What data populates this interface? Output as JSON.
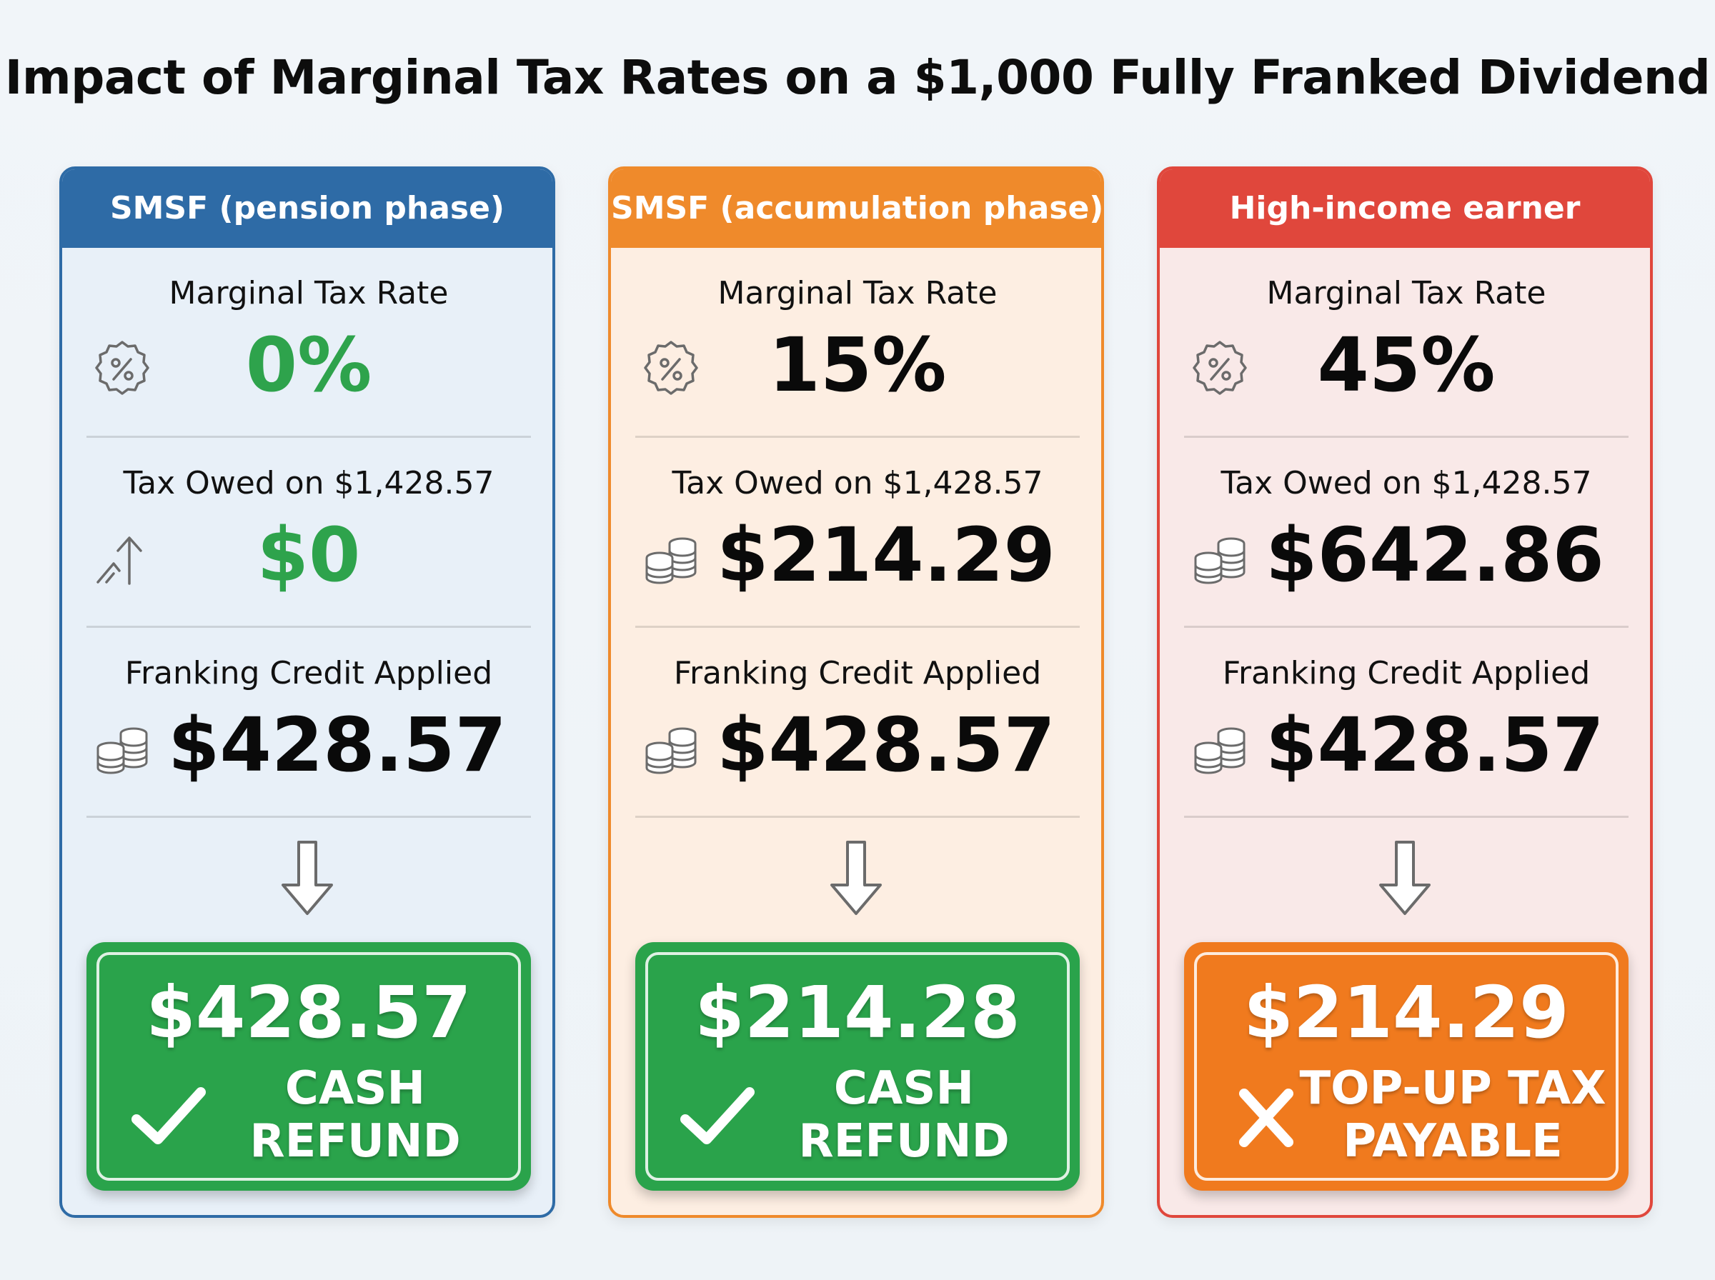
{
  "title": "Impact of Marginal Tax Rates on a $1,000 Fully Franked Dividend",
  "cards": [
    {
      "header": "SMSF (pension phase)",
      "accent": "#2e6ba6",
      "rate_label": "Marginal Tax Rate",
      "rate_value": "0%",
      "rate_icon": "percent-badge-icon",
      "tax_label": "Tax Owed on $1,428.57",
      "tax_value": "$0",
      "tax_icon": "trend-up-arrow-icon",
      "credit_label": "Franking Credit Applied",
      "credit_value": "$428.57",
      "credit_icon": "coins-stack-icon",
      "result_amount": "$428.57",
      "result_line1": "CASH",
      "result_line2": "REFUND",
      "result_icon": "check-icon",
      "result_color": "#2aa34b"
    },
    {
      "header": "SMSF (accumulation phase)",
      "accent": "#ef8a2b",
      "rate_label": "Marginal Tax Rate",
      "rate_value": "15%",
      "rate_icon": "percent-badge-icon",
      "tax_label": "Tax Owed on $1,428.57",
      "tax_value": "$214.29",
      "tax_icon": "coins-stack-icon",
      "credit_label": "Franking Credit Applied",
      "credit_value": "$428.57",
      "credit_icon": "coins-stack-icon",
      "result_amount": "$214.28",
      "result_line1": "CASH",
      "result_line2": "REFUND",
      "result_icon": "check-icon",
      "result_color": "#2aa34b"
    },
    {
      "header": "High-income earner",
      "accent": "#e0473c",
      "rate_label": "Marginal Tax Rate",
      "rate_value": "45%",
      "rate_icon": "percent-badge-icon",
      "tax_label": "Tax Owed on $1,428.57",
      "tax_value": "$642.86",
      "tax_icon": "coins-stack-icon",
      "credit_label": "Franking Credit Applied",
      "credit_value": "$428.57",
      "credit_icon": "coins-stack-icon",
      "result_amount": "$214.29",
      "result_line1": "TOP-UP TAX",
      "result_line2": "PAYABLE",
      "result_icon": "cross-icon",
      "result_color": "#f07a1e"
    }
  ]
}
